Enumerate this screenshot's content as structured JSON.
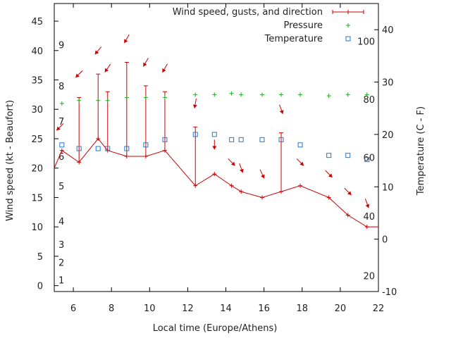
{
  "chart_data": {
    "type": "line",
    "xlabel": "Local time (Europe/Athens)",
    "ylabel": "Wind speed (kt - Beaufort)",
    "y2label": "Temperature (C - F)",
    "xlim": [
      5,
      22
    ],
    "ylim": [
      -1,
      48
    ],
    "y2lim": [
      -10,
      45
    ],
    "x_ticks": [
      6,
      8,
      10,
      12,
      14,
      16,
      18,
      20,
      22
    ],
    "y_ticks": [
      0,
      5,
      10,
      15,
      20,
      25,
      30,
      35,
      40,
      45
    ],
    "y2_ticks": [
      -10,
      0,
      10,
      20,
      30,
      40
    ],
    "beaufort_labels": [
      {
        "label": "1",
        "kt": 1
      },
      {
        "label": "2",
        "kt": 4
      },
      {
        "label": "3",
        "kt": 7
      },
      {
        "label": "4",
        "kt": 11
      },
      {
        "label": "5",
        "kt": 17
      },
      {
        "label": "6",
        "kt": 22
      },
      {
        "label": "7",
        "kt": 28
      },
      {
        "label": "8",
        "kt": 34
      },
      {
        "label": "9",
        "kt": 41
      }
    ],
    "fahrenheit_labels": [
      {
        "label": "20",
        "celsius": -7
      },
      {
        "label": "40",
        "celsius": 4.4
      },
      {
        "label": "60",
        "celsius": 15.6
      },
      {
        "label": "80",
        "celsius": 26.7
      },
      {
        "label": "100",
        "celsius": 37.8
      }
    ],
    "legend": [
      {
        "name": "Wind speed, gusts, and direction",
        "marker": "line-plus"
      },
      {
        "name": "Pressure",
        "marker": "plus"
      },
      {
        "name": "Temperature",
        "marker": "square"
      }
    ],
    "legend_position": "top-right",
    "wind": [
      {
        "x": 5.0,
        "speed": 20
      },
      {
        "x": 5.4,
        "speed": 23
      },
      {
        "x": 6.3,
        "speed": 21,
        "gust": 32
      },
      {
        "x": 7.3,
        "speed": 25,
        "gust": 36
      },
      {
        "x": 7.8,
        "speed": 23,
        "gust": 33
      },
      {
        "x": 8.8,
        "speed": 22,
        "gust": 38
      },
      {
        "x": 9.8,
        "speed": 22,
        "gust": 34
      },
      {
        "x": 10.8,
        "speed": 23,
        "gust": 33
      },
      {
        "x": 12.4,
        "speed": 17,
        "gust": 27
      },
      {
        "x": 13.4,
        "speed": 19
      },
      {
        "x": 14.3,
        "speed": 17
      },
      {
        "x": 14.8,
        "speed": 16
      },
      {
        "x": 15.9,
        "speed": 15
      },
      {
        "x": 16.9,
        "speed": 16,
        "gust": 26
      },
      {
        "x": 17.9,
        "speed": 17
      },
      {
        "x": 19.4,
        "speed": 15
      },
      {
        "x": 20.4,
        "speed": 12
      },
      {
        "x": 21.4,
        "speed": 10
      },
      {
        "x": 22.0,
        "speed": 10
      }
    ],
    "direction_arrows": [
      {
        "x": 5.3,
        "kt": 27,
        "angle": 225
      },
      {
        "x": 6.3,
        "kt": 36,
        "angle": 225
      },
      {
        "x": 7.3,
        "kt": 40,
        "angle": 220
      },
      {
        "x": 7.8,
        "kt": 37,
        "angle": 215
      },
      {
        "x": 8.8,
        "kt": 42,
        "angle": 210
      },
      {
        "x": 9.8,
        "kt": 38,
        "angle": 210
      },
      {
        "x": 10.8,
        "kt": 37,
        "angle": 210
      },
      {
        "x": 12.4,
        "kt": 31,
        "angle": 190
      },
      {
        "x": 13.4,
        "kt": 24,
        "angle": 180
      },
      {
        "x": 14.3,
        "kt": 21,
        "angle": 135
      },
      {
        "x": 14.8,
        "kt": 20,
        "angle": 160
      },
      {
        "x": 15.9,
        "kt": 19,
        "angle": 155
      },
      {
        "x": 16.9,
        "kt": 30,
        "angle": 160
      },
      {
        "x": 17.9,
        "kt": 21,
        "angle": 135
      },
      {
        "x": 19.4,
        "kt": 19,
        "angle": 135
      },
      {
        "x": 20.4,
        "kt": 16,
        "angle": 135
      },
      {
        "x": 21.4,
        "kt": 14,
        "angle": 160
      }
    ],
    "pressure": [
      {
        "x": 5.4,
        "y": 31
      },
      {
        "x": 6.3,
        "y": 31.5
      },
      {
        "x": 7.3,
        "y": 31.5
      },
      {
        "x": 7.8,
        "y": 31.5
      },
      {
        "x": 8.8,
        "y": 32
      },
      {
        "x": 9.8,
        "y": 32
      },
      {
        "x": 10.8,
        "y": 32
      },
      {
        "x": 12.4,
        "y": 32.5
      },
      {
        "x": 13.4,
        "y": 32.5
      },
      {
        "x": 14.3,
        "y": 32.7
      },
      {
        "x": 14.8,
        "y": 32.5
      },
      {
        "x": 15.9,
        "y": 32.5
      },
      {
        "x": 16.9,
        "y": 32.5
      },
      {
        "x": 17.9,
        "y": 32.5
      },
      {
        "x": 19.4,
        "y": 32.3
      },
      {
        "x": 20.4,
        "y": 32.5
      },
      {
        "x": 21.4,
        "y": 32.5
      }
    ],
    "temperature_c": [
      {
        "x": 5.4,
        "y": 18
      },
      {
        "x": 6.3,
        "y": 17.3
      },
      {
        "x": 7.3,
        "y": 17.3
      },
      {
        "x": 7.8,
        "y": 17.3
      },
      {
        "x": 8.8,
        "y": 17.3
      },
      {
        "x": 9.8,
        "y": 18
      },
      {
        "x": 10.8,
        "y": 19
      },
      {
        "x": 12.4,
        "y": 20
      },
      {
        "x": 13.4,
        "y": 20
      },
      {
        "x": 14.3,
        "y": 19
      },
      {
        "x": 14.8,
        "y": 19
      },
      {
        "x": 15.9,
        "y": 19
      },
      {
        "x": 16.9,
        "y": 19
      },
      {
        "x": 17.9,
        "y": 18
      },
      {
        "x": 19.4,
        "y": 16
      },
      {
        "x": 20.4,
        "y": 16
      },
      {
        "x": 21.4,
        "y": 15.2
      }
    ],
    "colors": {
      "wind": "#cc0000",
      "pressure": "#22aa22",
      "temperature": "#2277cc"
    }
  }
}
